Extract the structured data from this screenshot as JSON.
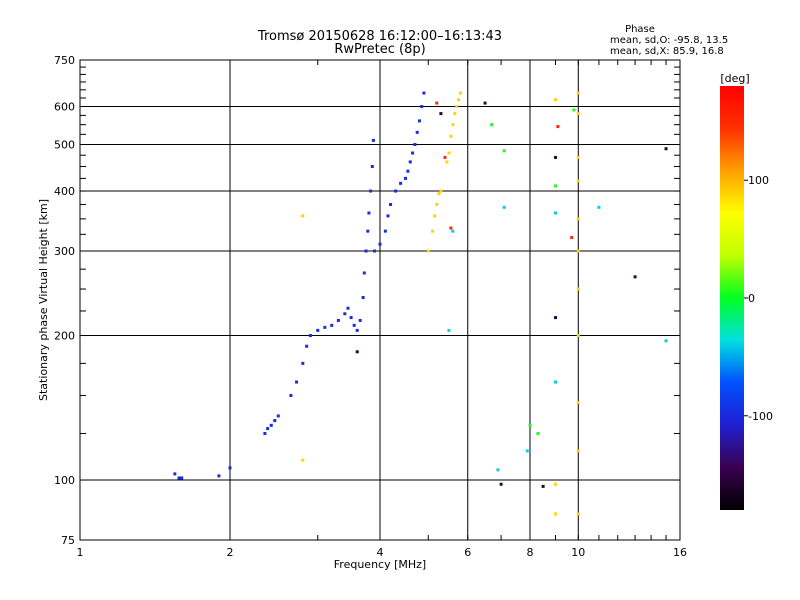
{
  "chart_data": {
    "type": "scatter",
    "title": "Tromsø 20150628 16:12:00–16:13:43",
    "subtitle": "RwPretec (8p)",
    "xlabel": "Frequency [MHz]",
    "ylabel": "Stationary phase Virtual Height [km]",
    "x_scale": "log",
    "y_scale": "log",
    "xlim": [
      1,
      16
    ],
    "ylim": [
      75,
      750
    ],
    "x_ticks": [
      1,
      2,
      4,
      6,
      8,
      10,
      16
    ],
    "x_tick_labels": [
      "1",
      "2",
      "4",
      "6",
      "8",
      "10",
      "16"
    ],
    "y_ticks": [
      75,
      100,
      200,
      300,
      400,
      500,
      600,
      750
    ],
    "y_tick_labels": [
      "75",
      "100",
      "200",
      "300",
      "400",
      "500",
      "600",
      "750"
    ],
    "grid": true,
    "phase_info": {
      "heading": "Phase",
      "line_o": "mean, sd,O: -95.8, 13.5",
      "line_x": "mean, sd,X:  85.9, 16.8"
    },
    "colorbar": {
      "label": "[deg]",
      "range": [
        -180,
        180
      ],
      "ticks": [
        100,
        0,
        -100
      ],
      "tick_labels": [
        "100",
        "0",
        "-100"
      ],
      "colors": [
        "#000000",
        "#3a0050",
        "#2020d0",
        "#0050ff",
        "#00e0e0",
        "#00ff20",
        "#c0ff00",
        "#ffff00",
        "#ffa000",
        "#ff3000",
        "#ff0000"
      ]
    },
    "traces": [
      {
        "name": "",
        "phase": -98,
        "points": [
          [
            1.55,
            103
          ],
          [
            1.58,
            101
          ],
          [
            1.6,
            101
          ],
          [
            1.9,
            102
          ],
          [
            2.0,
            106
          ],
          [
            2.35,
            125
          ],
          [
            2.38,
            128
          ],
          [
            2.42,
            130
          ],
          [
            2.46,
            133
          ],
          [
            2.5,
            136
          ],
          [
            2.65,
            150
          ],
          [
            2.72,
            160
          ],
          [
            2.8,
            175
          ],
          [
            2.85,
            190
          ],
          [
            2.9,
            200
          ],
          [
            3.0,
            205
          ],
          [
            3.1,
            208
          ],
          [
            3.2,
            210
          ],
          [
            3.3,
            215
          ],
          [
            3.4,
            222
          ],
          [
            3.45,
            228
          ],
          [
            3.5,
            218
          ],
          [
            3.55,
            210
          ],
          [
            3.6,
            205
          ],
          [
            3.65,
            215
          ],
          [
            3.7,
            240
          ],
          [
            3.72,
            270
          ],
          [
            3.75,
            300
          ],
          [
            3.78,
            330
          ],
          [
            3.8,
            360
          ],
          [
            3.83,
            400
          ],
          [
            3.86,
            450
          ],
          [
            3.88,
            510
          ],
          [
            3.9,
            300
          ],
          [
            4.0,
            310
          ],
          [
            4.1,
            330
          ],
          [
            4.15,
            355
          ],
          [
            4.2,
            375
          ],
          [
            4.3,
            400
          ],
          [
            4.4,
            415
          ],
          [
            4.5,
            425
          ],
          [
            4.55,
            440
          ],
          [
            4.6,
            460
          ],
          [
            4.65,
            480
          ],
          [
            4.7,
            500
          ],
          [
            4.75,
            530
          ],
          [
            4.8,
            560
          ],
          [
            4.85,
            600
          ],
          [
            4.9,
            640
          ]
        ]
      },
      {
        "name": "",
        "phase": 88,
        "points": [
          [
            2.8,
            355
          ],
          [
            2.8,
            110
          ],
          [
            5.0,
            300
          ],
          [
            5.1,
            330
          ],
          [
            5.15,
            355
          ],
          [
            5.2,
            375
          ],
          [
            5.25,
            395
          ],
          [
            5.3,
            400
          ],
          [
            5.45,
            460
          ],
          [
            5.5,
            480
          ],
          [
            5.55,
            520
          ],
          [
            5.6,
            550
          ],
          [
            5.65,
            580
          ],
          [
            5.7,
            600
          ],
          [
            5.75,
            620
          ],
          [
            5.8,
            640
          ],
          [
            9.0,
            98
          ],
          [
            9.0,
            85
          ],
          [
            9.0,
            620
          ],
          [
            10.0,
            85
          ],
          [
            10.0,
            115
          ],
          [
            10.0,
            145
          ],
          [
            10.0,
            200
          ],
          [
            10.0,
            250
          ],
          [
            10.0,
            300
          ],
          [
            10.0,
            350
          ],
          [
            10.0,
            420
          ],
          [
            10.0,
            470
          ],
          [
            10.0,
            580
          ],
          [
            10.0,
            640
          ]
        ]
      },
      {
        "name": "",
        "phase": 5,
        "points": [
          [
            6.7,
            550
          ],
          [
            7.1,
            485
          ],
          [
            8.0,
            130
          ],
          [
            8.3,
            125
          ],
          [
            9.0,
            410
          ],
          [
            9.8,
            590
          ]
        ]
      },
      {
        "name": "",
        "phase": -40,
        "points": [
          [
            5.5,
            205
          ],
          [
            5.6,
            330
          ],
          [
            6.9,
            105
          ],
          [
            7.1,
            370
          ],
          [
            7.9,
            115
          ],
          [
            9.0,
            160
          ],
          [
            9.0,
            360
          ],
          [
            11.0,
            370
          ],
          [
            15.0,
            195
          ]
        ]
      },
      {
        "name": "",
        "phase": -150,
        "points": [
          [
            6.5,
            610
          ],
          [
            5.3,
            580
          ],
          [
            7.0,
            98
          ],
          [
            8.5,
            97
          ],
          [
            9.0,
            470
          ],
          [
            9.0,
            218
          ],
          [
            13.0,
            265
          ],
          [
            15.0,
            490
          ],
          [
            3.6,
            185
          ]
        ]
      },
      {
        "name": "",
        "phase": 150,
        "points": [
          [
            5.2,
            610
          ],
          [
            5.4,
            470
          ],
          [
            5.55,
            335
          ],
          [
            9.1,
            545
          ],
          [
            9.7,
            320
          ]
        ]
      }
    ]
  }
}
